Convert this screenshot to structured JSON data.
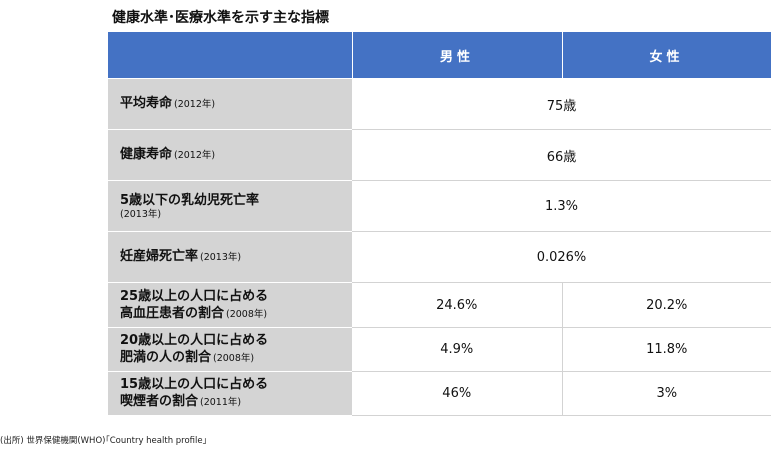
{
  "title": "健康水準･医療水準を示す主な指標",
  "header": {
    "male": "男性",
    "female": "女性"
  },
  "rows": [
    {
      "label": "平均寿命",
      "year": "(2012年)",
      "value": "75歳"
    },
    {
      "label": "健康寿命",
      "year": "(2012年)",
      "value": "66歳"
    },
    {
      "label": "5歳以下の乳幼児死亡率",
      "year": "(2013年)",
      "value": "1.3%"
    },
    {
      "label": "妊産婦死亡率",
      "year": "(2013年)",
      "value": "0.026%"
    },
    {
      "label_line1": "25歳以上の人口に占める",
      "label_line2": "高血圧患者の割合",
      "year": "(2008年)",
      "male": "24.6%",
      "female": "20.2%"
    },
    {
      "label_line1": "20歳以上の人口に占める",
      "label_line2": "肥満の人の割合",
      "year": "(2008年)",
      "male": "4.9%",
      "female": "11.8%"
    },
    {
      "label_line1": "15歳以上の人口に占める",
      "label_line2": "喫煙者の割合",
      "year": "(2011年)",
      "male": "46%",
      "female": "3%"
    }
  ],
  "source_note": "(出所) 世界保健機関(WHO)｢Country health profile｣"
}
